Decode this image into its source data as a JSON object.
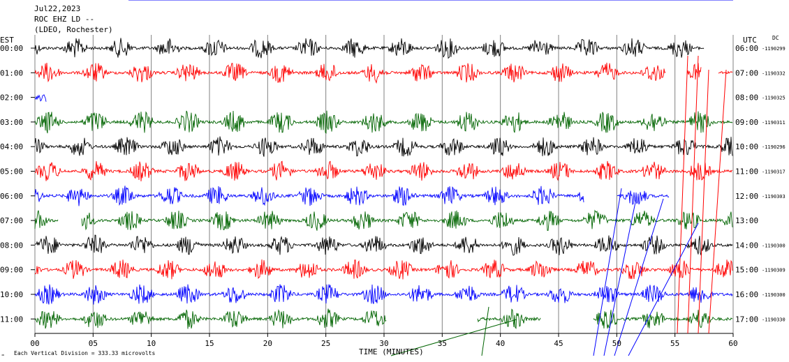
{
  "header": {
    "date": "Jul22,2023",
    "station": "ROC EHZ LD --",
    "network": "(LDEO, Rochester)"
  },
  "left_axis_title": "EST",
  "right_axis_title": "UTC",
  "dc_label": "DC",
  "x_axis_title": "TIME (MINUTES)",
  "footer": "Each Vertical Division =  333.33 microvolts",
  "trace_colors": [
    "#000000",
    "#ff0000",
    "#0000ff",
    "#006400"
  ],
  "chart_data": {
    "type": "line",
    "title": "",
    "xlabel": "TIME (MINUTES)",
    "xlim": [
      0,
      60
    ],
    "x_ticks": [
      "00",
      "05",
      "10",
      "15",
      "20",
      "25",
      "30",
      "35",
      "40",
      "45",
      "50",
      "55",
      "60"
    ],
    "series": [
      {
        "est": "00:00",
        "utc": "06:00",
        "dc": "-1190299",
        "color": "#000000",
        "burst_phase": 2.3,
        "amp": 0.75,
        "end": 57.5,
        "gaps": []
      },
      {
        "est": "01:00",
        "utc": "07:00",
        "dc": "-1190332",
        "color": "#ff0000",
        "burst_phase": 0.0,
        "amp": 0.75,
        "end": 60,
        "gaps": [
          [
            54.2,
            56.0
          ],
          [
            57.3,
            58.7
          ]
        ]
      },
      {
        "est": "02:00",
        "utc": "08:00",
        "dc": "-1190325",
        "color": "#0000ff",
        "burst_phase": 0.0,
        "amp": 0.3,
        "end": 1.0,
        "gaps": []
      },
      {
        "est": "03:00",
        "utc": "09:00",
        "dc": "-1190311",
        "color": "#006400",
        "burst_phase": 0.0,
        "amp": 0.85,
        "end": 60,
        "gaps": []
      },
      {
        "est": "04:00",
        "utc": "10:00",
        "dc": "-1190296",
        "color": "#000000",
        "burst_phase": 2.7,
        "amp": 0.75,
        "end": 60,
        "gaps": []
      },
      {
        "est": "05:00",
        "utc": "11:00",
        "dc": "-1190317",
        "color": "#ff0000",
        "burst_phase": 0.0,
        "amp": 0.75,
        "end": 60,
        "gaps": []
      },
      {
        "est": "06:00",
        "utc": "12:00",
        "dc": "-1190303",
        "color": "#0000ff",
        "burst_phase": 2.5,
        "amp": 0.75,
        "end": 54.5,
        "gaps": [
          [
            47.2,
            50.0
          ]
        ]
      },
      {
        "est": "07:00",
        "utc": "13:00",
        "dc": "",
        "color": "#006400",
        "burst_phase": 7.0,
        "amp": 0.75,
        "end": 60,
        "gaps": [
          [
            2.0,
            4.0
          ]
        ]
      },
      {
        "est": "08:00",
        "utc": "14:00",
        "dc": "-1190300",
        "color": "#000000",
        "burst_phase": 0.0,
        "amp": 0.75,
        "end": 60,
        "gaps": []
      },
      {
        "est": "09:00",
        "utc": "15:00",
        "dc": "-1190309",
        "color": "#ff0000",
        "burst_phase": 2.3,
        "amp": 0.75,
        "end": 60,
        "gaps": []
      },
      {
        "est": "10:00",
        "utc": "16:00",
        "dc": "-1190300",
        "color": "#0000ff",
        "burst_phase": 0.0,
        "amp": 0.75,
        "end": 60,
        "gaps": []
      },
      {
        "est": "11:00",
        "utc": "17:00",
        "dc": "-1190330",
        "color": "#006400",
        "burst_phase": 0.0,
        "amp": 0.75,
        "end": 60,
        "gaps": [
          [
            30.2,
            38.0
          ],
          [
            43.5,
            48.0
          ]
        ]
      }
    ]
  }
}
